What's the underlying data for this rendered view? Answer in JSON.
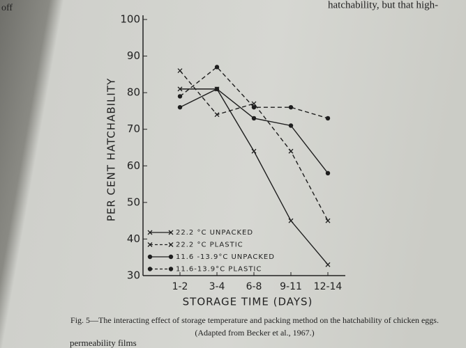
{
  "page_text": {
    "top_left": "off",
    "top_right": "hatchability, but that high-",
    "bottom_left": "permeability films"
  },
  "chart_data": {
    "type": "line",
    "xlabel": "STORAGE TIME (DAYS)",
    "ylabel": "PER CENT HATCHABILITY",
    "categories": [
      "1-2",
      "3-4",
      "6-8",
      "9-11",
      "12-14"
    ],
    "ylim": [
      30,
      100
    ],
    "yticks": [
      30,
      40,
      50,
      60,
      70,
      80,
      90,
      100
    ],
    "series": [
      {
        "name": "22.2 °C UNPACKED",
        "color": "#1e1e1e",
        "marker": "x",
        "dashed": false,
        "values": [
          81,
          81,
          64,
          45,
          33
        ]
      },
      {
        "name": "22.2 °C PLASTIC",
        "color": "#1e1e1e",
        "marker": "x",
        "dashed": true,
        "values": [
          86,
          74,
          77,
          64,
          45
        ]
      },
      {
        "name": "11.6 -13.9°C UNPACKED",
        "color": "#1e1e1e",
        "marker": "dot",
        "dashed": false,
        "values": [
          76,
          81,
          73,
          71,
          58
        ]
      },
      {
        "name": "11.6-13.9°C PLASTIC",
        "color": "#1e1e1e",
        "marker": "dot",
        "dashed": true,
        "values": [
          79,
          87,
          76,
          76,
          73
        ]
      }
    ],
    "caption": "Fig. 5—The interacting effect of storage temperature and packing method on the hatchability of chicken eggs.",
    "source": "(Adapted from Becker et al., 1967.)"
  }
}
